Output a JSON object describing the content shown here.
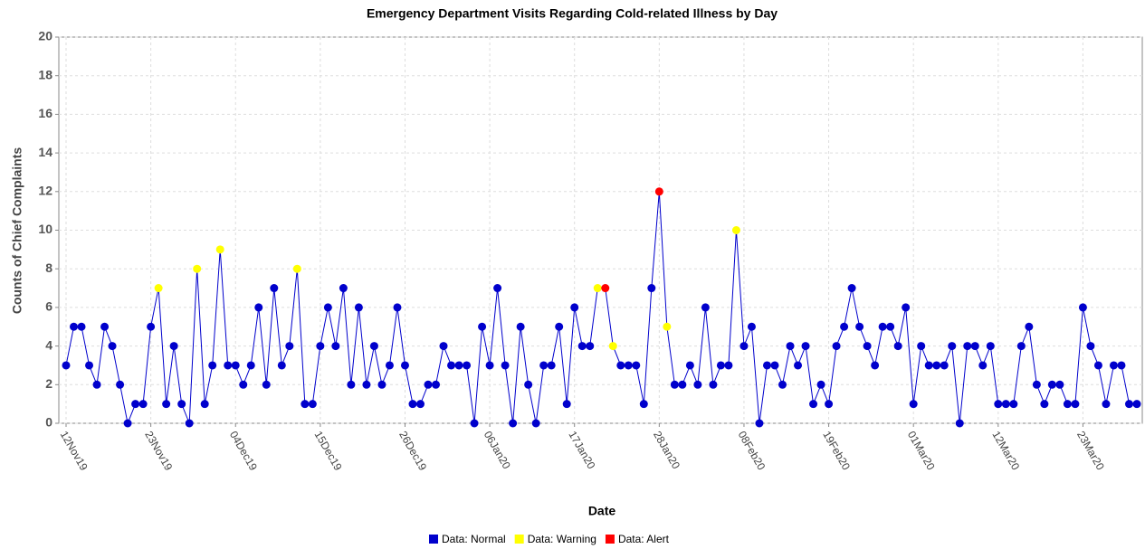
{
  "chart_data": {
    "type": "line",
    "title": "Emergency Department Visits Regarding Cold-related Illness by Day",
    "x_label": "Date",
    "y_label": "Counts of Chief Complaints",
    "x": [
      "12Nov19",
      "13Nov19",
      "14Nov19",
      "15Nov19",
      "16Nov19",
      "17Nov19",
      "18Nov19",
      "19Nov19",
      "20Nov19",
      "21Nov19",
      "22Nov19",
      "23Nov19",
      "24Nov19",
      "25Nov19",
      "26Nov19",
      "27Nov19",
      "28Nov19",
      "29Nov19",
      "30Nov19",
      "01Dec19",
      "02Dec19",
      "03Dec19",
      "04Dec19",
      "05Dec19",
      "06Dec19",
      "07Dec19",
      "08Dec19",
      "09Dec19",
      "10Dec19",
      "11Dec19",
      "12Dec19",
      "13Dec19",
      "14Dec19",
      "15Dec19",
      "16Dec19",
      "17Dec19",
      "18Dec19",
      "19Dec19",
      "20Dec19",
      "21Dec19",
      "22Dec19",
      "23Dec19",
      "24Dec19",
      "25Dec19",
      "26Dec19",
      "27Dec19",
      "28Dec19",
      "29Dec19",
      "30Dec19",
      "31Dec19",
      "01Jan20",
      "02Jan20",
      "03Jan20",
      "04Jan20",
      "05Jan20",
      "06Jan20",
      "07Jan20",
      "08Jan20",
      "09Jan20",
      "10Jan20",
      "11Jan20",
      "12Jan20",
      "13Jan20",
      "14Jan20",
      "15Jan20",
      "16Jan20",
      "17Jan20",
      "18Jan20",
      "19Jan20",
      "20Jan20",
      "21Jan20",
      "22Jan20",
      "23Jan20",
      "24Jan20",
      "25Jan20",
      "26Jan20",
      "27Jan20",
      "28Jan20",
      "29Jan20",
      "30Jan20",
      "31Jan20",
      "01Feb20",
      "02Feb20",
      "03Feb20",
      "04Feb20",
      "05Feb20",
      "06Feb20",
      "07Feb20",
      "08Feb20",
      "09Feb20",
      "10Feb20",
      "11Feb20",
      "12Feb20",
      "13Feb20",
      "14Feb20",
      "15Feb20",
      "16Feb20",
      "17Feb20",
      "18Feb20",
      "19Feb20",
      "20Feb20",
      "21Feb20",
      "22Feb20",
      "23Feb20",
      "24Feb20",
      "25Feb20",
      "26Feb20",
      "27Feb20",
      "28Feb20",
      "29Feb20",
      "01Mar20",
      "02Mar20",
      "03Mar20",
      "04Mar20",
      "05Mar20",
      "06Mar20",
      "07Mar20",
      "08Mar20",
      "09Mar20",
      "10Mar20",
      "11Mar20",
      "12Mar20",
      "13Mar20",
      "14Mar20",
      "15Mar20",
      "16Mar20",
      "17Mar20",
      "18Mar20",
      "19Mar20",
      "20Mar20",
      "21Mar20",
      "22Mar20",
      "23Mar20",
      "24Mar20",
      "25Mar20",
      "26Mar20",
      "27Mar20",
      "28Mar20",
      "29Mar20",
      "30Mar20"
    ],
    "xticks": [
      "12Nov19",
      "23Nov19",
      "04Dec19",
      "15Dec19",
      "26Dec19",
      "06Jan20",
      "17Jan20",
      "28Jan20",
      "08Feb20",
      "19Feb20",
      "01Mar20",
      "12Mar20",
      "23Mar20"
    ],
    "line_color": "#0000cc",
    "values": [
      3,
      5,
      5,
      3,
      2,
      5,
      4,
      2,
      0,
      1,
      1,
      5,
      7,
      1,
      4,
      1,
      0,
      8,
      1,
      3,
      9,
      3,
      3,
      2,
      3,
      6,
      2,
      7,
      3,
      4,
      8,
      1,
      1,
      4,
      6,
      4,
      7,
      2,
      6,
      2,
      4,
      2,
      3,
      6,
      3,
      1,
      1,
      2,
      2,
      4,
      3,
      3,
      3,
      0,
      5,
      3,
      7,
      3,
      0,
      5,
      2,
      0,
      3,
      3,
      5,
      1,
      6,
      4,
      4,
      7,
      7,
      4,
      3,
      3,
      3,
      1,
      7,
      12,
      5,
      2,
      2,
      3,
      2,
      6,
      2,
      3,
      3,
      10,
      4,
      5,
      0,
      3,
      3,
      2,
      4,
      3,
      4,
      1,
      2,
      1,
      4,
      5,
      7,
      5,
      4,
      3,
      5,
      5,
      4,
      6,
      1,
      4,
      3,
      3,
      3,
      4,
      0,
      4,
      4,
      3,
      4,
      1,
      1,
      1,
      4,
      5,
      2,
      1,
      2,
      2,
      1,
      1,
      6,
      4,
      3,
      1,
      3,
      3,
      1,
      1
    ],
    "point_colors": [
      "#0000cc",
      "#0000cc",
      "#0000cc",
      "#0000cc",
      "#0000cc",
      "#0000cc",
      "#0000cc",
      "#0000cc",
      "#0000cc",
      "#0000cc",
      "#0000cc",
      "#0000cc",
      "#ffff00",
      "#0000cc",
      "#0000cc",
      "#0000cc",
      "#0000cc",
      "#ffff00",
      "#0000cc",
      "#0000cc",
      "#ffff00",
      "#0000cc",
      "#0000cc",
      "#0000cc",
      "#0000cc",
      "#0000cc",
      "#0000cc",
      "#0000cc",
      "#0000cc",
      "#0000cc",
      "#ffff00",
      "#0000cc",
      "#0000cc",
      "#0000cc",
      "#0000cc",
      "#0000cc",
      "#0000cc",
      "#0000cc",
      "#0000cc",
      "#0000cc",
      "#0000cc",
      "#0000cc",
      "#0000cc",
      "#0000cc",
      "#0000cc",
      "#0000cc",
      "#0000cc",
      "#0000cc",
      "#0000cc",
      "#0000cc",
      "#0000cc",
      "#0000cc",
      "#0000cc",
      "#0000cc",
      "#0000cc",
      "#0000cc",
      "#0000cc",
      "#0000cc",
      "#0000cc",
      "#0000cc",
      "#0000cc",
      "#0000cc",
      "#0000cc",
      "#0000cc",
      "#0000cc",
      "#0000cc",
      "#0000cc",
      "#0000cc",
      "#0000cc",
      "#ffff00",
      "#ff0000",
      "#ffff00",
      "#0000cc",
      "#0000cc",
      "#0000cc",
      "#0000cc",
      "#0000cc",
      "#ff0000",
      "#ffff00",
      "#0000cc",
      "#0000cc",
      "#0000cc",
      "#0000cc",
      "#0000cc",
      "#0000cc",
      "#0000cc",
      "#0000cc",
      "#ffff00",
      "#0000cc",
      "#0000cc",
      "#0000cc",
      "#0000cc",
      "#0000cc",
      "#0000cc",
      "#0000cc",
      "#0000cc",
      "#0000cc",
      "#0000cc",
      "#0000cc",
      "#0000cc",
      "#0000cc",
      "#0000cc",
      "#0000cc",
      "#0000cc",
      "#0000cc",
      "#0000cc",
      "#0000cc",
      "#0000cc",
      "#0000cc",
      "#0000cc",
      "#0000cc",
      "#0000cc",
      "#0000cc",
      "#0000cc",
      "#0000cc",
      "#0000cc",
      "#0000cc",
      "#0000cc",
      "#0000cc",
      "#0000cc",
      "#0000cc",
      "#0000cc",
      "#0000cc",
      "#0000cc",
      "#0000cc",
      "#0000cc",
      "#0000cc",
      "#0000cc",
      "#0000cc",
      "#0000cc",
      "#0000cc",
      "#0000cc",
      "#0000cc",
      "#0000cc",
      "#0000cc",
      "#0000cc",
      "#0000cc",
      "#0000cc",
      "#0000cc",
      "#0000cc"
    ],
    "legend": [
      {
        "name": "Data: Normal",
        "color": "#0000cc"
      },
      {
        "name": "Data: Warning",
        "color": "#ffff00"
      },
      {
        "name": "Data: Alert",
        "color": "#ff0000"
      }
    ],
    "ylim": [
      0,
      20
    ],
    "yticks": [
      0,
      2,
      4,
      6,
      8,
      10,
      12,
      14,
      16,
      18,
      20
    ],
    "grid": true
  }
}
